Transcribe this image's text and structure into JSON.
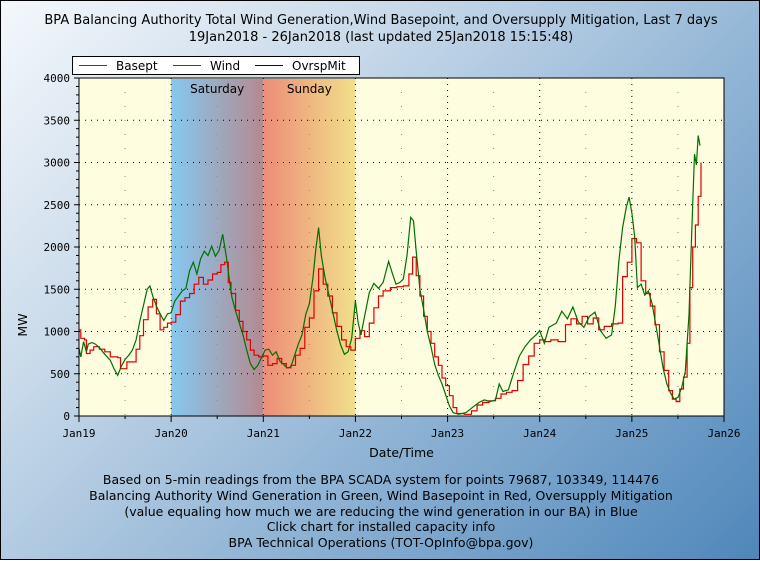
{
  "header": {
    "title_line1": "BPA Balancing Authority Total Wind Generation,Wind Basepoint, and Oversupply Mitigation, Last 7 days",
    "title_line2": "19Jan2018 - 26Jan2018 (last updated 25Jan2018 15:15:48)"
  },
  "footer": {
    "lines": [
      "Based on 5-min readings from the BPA SCADA system for points 79687, 103349, 114476",
      "Balancing Authority Wind Generation in Green, Wind Basepoint in Red, Oversupply Mitigation",
      "(value equaling how much we are reducing the wind generation in our BA) in Blue",
      "Click chart for installed capacity info",
      "BPA Technical Operations (TOT-OpInfo@bpa.gov)"
    ]
  },
  "colors": {
    "basepoint": "#e00000",
    "wind": "#007000",
    "oversupply": "#000080",
    "plot_bg": "#fffde0",
    "saturday_start": "#86c8f0",
    "saturday_end": "#b48a90",
    "sunday_start": "#ee8c78",
    "sunday_end": "#f0e08a"
  },
  "chart_data": {
    "type": "line",
    "title": "BPA Balancing Authority Total Wind Generation,Wind Basepoint, and Oversupply Mitigation, Last 7 days",
    "subtitle": "19Jan2018 - 26Jan2018 (last updated 25Jan2018 15:15:48)",
    "xlabel": "Date/Time",
    "ylabel": "MW",
    "xlim_days": [
      0,
      7
    ],
    "ylim": [
      0,
      4000
    ],
    "x_ticks": [
      "Jan19",
      "Jan20",
      "Jan21",
      "Jan22",
      "Jan23",
      "Jan24",
      "Jan25",
      "Jan26"
    ],
    "y_ticks": [
      0,
      500,
      1000,
      1500,
      2000,
      2500,
      3000,
      3500,
      4000
    ],
    "grid": true,
    "legend": {
      "placement": "top-left",
      "entries": [
        "Basept",
        "Wind",
        "OvrspMit"
      ]
    },
    "shaded_regions": [
      {
        "label": "Saturday",
        "start_day": 1,
        "end_day": 2
      },
      {
        "label": "Sunday",
        "start_day": 2,
        "end_day": 3
      }
    ],
    "x_unit": "days since Jan19 00:00",
    "series": [
      {
        "name": "Basept",
        "color": "#e00000",
        "points": [
          [
            0.0,
            1020
          ],
          [
            0.02,
            920
          ],
          [
            0.06,
            900
          ],
          [
            0.08,
            740
          ],
          [
            0.12,
            780
          ],
          [
            0.16,
            820
          ],
          [
            0.22,
            790
          ],
          [
            0.28,
            760
          ],
          [
            0.34,
            700
          ],
          [
            0.42,
            690
          ],
          [
            0.45,
            560
          ],
          [
            0.48,
            560
          ],
          [
            0.52,
            640
          ],
          [
            0.58,
            640
          ],
          [
            0.62,
            790
          ],
          [
            0.66,
            950
          ],
          [
            0.7,
            1140
          ],
          [
            0.75,
            1290
          ],
          [
            0.8,
            1380
          ],
          [
            0.84,
            1210
          ],
          [
            0.88,
            1020
          ],
          [
            0.92,
            1050
          ],
          [
            0.96,
            1100
          ],
          [
            1.0,
            1110
          ],
          [
            1.05,
            1200
          ],
          [
            1.1,
            1360
          ],
          [
            1.15,
            1400
          ],
          [
            1.2,
            1450
          ],
          [
            1.25,
            1560
          ],
          [
            1.3,
            1640
          ],
          [
            1.35,
            1560
          ],
          [
            1.4,
            1610
          ],
          [
            1.45,
            1680
          ],
          [
            1.5,
            1700
          ],
          [
            1.54,
            1790
          ],
          [
            1.58,
            1820
          ],
          [
            1.62,
            1580
          ],
          [
            1.65,
            1450
          ],
          [
            1.7,
            1250
          ],
          [
            1.74,
            1120
          ],
          [
            1.78,
            1000
          ],
          [
            1.82,
            900
          ],
          [
            1.86,
            780
          ],
          [
            1.9,
            720
          ],
          [
            1.95,
            700
          ],
          [
            2.0,
            710
          ],
          [
            2.05,
            600
          ],
          [
            2.1,
            620
          ],
          [
            2.15,
            680
          ],
          [
            2.2,
            620
          ],
          [
            2.25,
            570
          ],
          [
            2.3,
            600
          ],
          [
            2.35,
            720
          ],
          [
            2.4,
            800
          ],
          [
            2.45,
            1050
          ],
          [
            2.5,
            1160
          ],
          [
            2.55,
            1480
          ],
          [
            2.6,
            1740
          ],
          [
            2.65,
            1560
          ],
          [
            2.7,
            1420
          ],
          [
            2.75,
            1220
          ],
          [
            2.8,
            1060
          ],
          [
            2.85,
            900
          ],
          [
            2.9,
            820
          ],
          [
            2.95,
            780
          ],
          [
            3.0,
            920
          ],
          [
            3.05,
            1010
          ],
          [
            3.1,
            940
          ],
          [
            3.15,
            1100
          ],
          [
            3.2,
            1280
          ],
          [
            3.25,
            1420
          ],
          [
            3.3,
            1480
          ],
          [
            3.38,
            1520
          ],
          [
            3.45,
            1530
          ],
          [
            3.52,
            1540
          ],
          [
            3.58,
            1680
          ],
          [
            3.62,
            1880
          ],
          [
            3.66,
            1660
          ],
          [
            3.7,
            1420
          ],
          [
            3.74,
            1180
          ],
          [
            3.78,
            1000
          ],
          [
            3.82,
            860
          ],
          [
            3.86,
            700
          ],
          [
            3.9,
            600
          ],
          [
            3.94,
            450
          ],
          [
            3.98,
            360
          ],
          [
            4.02,
            240
          ],
          [
            4.06,
            100
          ],
          [
            4.1,
            30
          ],
          [
            4.18,
            20
          ],
          [
            4.26,
            60
          ],
          [
            4.32,
            130
          ],
          [
            4.38,
            160
          ],
          [
            4.45,
            180
          ],
          [
            4.52,
            210
          ],
          [
            4.58,
            260
          ],
          [
            4.64,
            280
          ],
          [
            4.7,
            300
          ],
          [
            4.76,
            420
          ],
          [
            4.82,
            610
          ],
          [
            4.88,
            710
          ],
          [
            4.94,
            860
          ],
          [
            5.0,
            900
          ],
          [
            5.05,
            880
          ],
          [
            5.12,
            900
          ],
          [
            5.2,
            880
          ],
          [
            5.28,
            1080
          ],
          [
            5.34,
            1150
          ],
          [
            5.4,
            1090
          ],
          [
            5.46,
            1180
          ],
          [
            5.52,
            1090
          ],
          [
            5.58,
            1160
          ],
          [
            5.64,
            1020
          ],
          [
            5.7,
            1060
          ],
          [
            5.78,
            1090
          ],
          [
            5.85,
            1100
          ],
          [
            5.9,
            1650
          ],
          [
            5.95,
            1820
          ],
          [
            6.0,
            2100
          ],
          [
            6.05,
            2050
          ],
          [
            6.1,
            1600
          ],
          [
            6.15,
            1450
          ],
          [
            6.2,
            1300
          ],
          [
            6.25,
            1080
          ],
          [
            6.3,
            760
          ],
          [
            6.35,
            540
          ],
          [
            6.4,
            300
          ],
          [
            6.44,
            200
          ],
          [
            6.48,
            170
          ],
          [
            6.52,
            320
          ],
          [
            6.56,
            460
          ],
          [
            6.6,
            860
          ],
          [
            6.63,
            1520
          ],
          [
            6.66,
            2000
          ],
          [
            6.69,
            2260
          ],
          [
            6.72,
            2600
          ],
          [
            6.75,
            3000
          ]
        ]
      },
      {
        "name": "Wind",
        "color": "#007000",
        "points": [
          [
            0.0,
            800
          ],
          [
            0.02,
            700
          ],
          [
            0.05,
            880
          ],
          [
            0.08,
            760
          ],
          [
            0.1,
            850
          ],
          [
            0.14,
            870
          ],
          [
            0.18,
            850
          ],
          [
            0.22,
            810
          ],
          [
            0.28,
            730
          ],
          [
            0.34,
            660
          ],
          [
            0.38,
            560
          ],
          [
            0.42,
            480
          ],
          [
            0.46,
            590
          ],
          [
            0.5,
            670
          ],
          [
            0.54,
            720
          ],
          [
            0.58,
            780
          ],
          [
            0.62,
            900
          ],
          [
            0.66,
            1120
          ],
          [
            0.7,
            1310
          ],
          [
            0.74,
            1500
          ],
          [
            0.77,
            1540
          ],
          [
            0.8,
            1420
          ],
          [
            0.84,
            1300
          ],
          [
            0.88,
            1210
          ],
          [
            0.92,
            1130
          ],
          [
            0.96,
            1210
          ],
          [
            1.0,
            1220
          ],
          [
            1.04,
            1360
          ],
          [
            1.08,
            1420
          ],
          [
            1.12,
            1480
          ],
          [
            1.16,
            1510
          ],
          [
            1.2,
            1720
          ],
          [
            1.24,
            1820
          ],
          [
            1.28,
            1680
          ],
          [
            1.32,
            1860
          ],
          [
            1.36,
            1950
          ],
          [
            1.4,
            1900
          ],
          [
            1.44,
            2010
          ],
          [
            1.48,
            1890
          ],
          [
            1.52,
            1960
          ],
          [
            1.56,
            2150
          ],
          [
            1.6,
            1880
          ],
          [
            1.63,
            1630
          ],
          [
            1.66,
            1400
          ],
          [
            1.7,
            1240
          ],
          [
            1.74,
            1100
          ],
          [
            1.78,
            960
          ],
          [
            1.82,
            780
          ],
          [
            1.86,
            620
          ],
          [
            1.9,
            550
          ],
          [
            1.94,
            600
          ],
          [
            1.98,
            690
          ],
          [
            2.02,
            780
          ],
          [
            2.06,
            790
          ],
          [
            2.1,
            720
          ],
          [
            2.14,
            760
          ],
          [
            2.18,
            650
          ],
          [
            2.22,
            610
          ],
          [
            2.26,
            570
          ],
          [
            2.3,
            580
          ],
          [
            2.34,
            720
          ],
          [
            2.38,
            850
          ],
          [
            2.42,
            960
          ],
          [
            2.46,
            1200
          ],
          [
            2.5,
            1330
          ],
          [
            2.54,
            1640
          ],
          [
            2.57,
            1970
          ],
          [
            2.6,
            2230
          ],
          [
            2.63,
            1900
          ],
          [
            2.67,
            1640
          ],
          [
            2.72,
            1400
          ],
          [
            2.76,
            1200
          ],
          [
            2.8,
            1000
          ],
          [
            2.84,
            840
          ],
          [
            2.88,
            730
          ],
          [
            2.92,
            760
          ],
          [
            2.96,
            920
          ],
          [
            3.0,
            1360
          ],
          [
            3.03,
            1100
          ],
          [
            3.06,
            960
          ],
          [
            3.1,
            1180
          ],
          [
            3.15,
            1460
          ],
          [
            3.2,
            1570
          ],
          [
            3.25,
            1510
          ],
          [
            3.3,
            1580
          ],
          [
            3.36,
            1830
          ],
          [
            3.4,
            1690
          ],
          [
            3.44,
            1560
          ],
          [
            3.48,
            1580
          ],
          [
            3.52,
            1620
          ],
          [
            3.56,
            1900
          ],
          [
            3.6,
            2350
          ],
          [
            3.63,
            2310
          ],
          [
            3.66,
            1950
          ],
          [
            3.7,
            1500
          ],
          [
            3.74,
            1260
          ],
          [
            3.78,
            1000
          ],
          [
            3.82,
            820
          ],
          [
            3.86,
            610
          ],
          [
            3.9,
            480
          ],
          [
            3.94,
            380
          ],
          [
            3.98,
            250
          ],
          [
            4.02,
            120
          ],
          [
            4.06,
            40
          ],
          [
            4.12,
            20
          ],
          [
            4.2,
            40
          ],
          [
            4.28,
            110
          ],
          [
            4.34,
            160
          ],
          [
            4.4,
            190
          ],
          [
            4.46,
            170
          ],
          [
            4.52,
            190
          ],
          [
            4.56,
            380
          ],
          [
            4.6,
            290
          ],
          [
            4.66,
            310
          ],
          [
            4.72,
            520
          ],
          [
            4.78,
            710
          ],
          [
            4.84,
            820
          ],
          [
            4.9,
            900
          ],
          [
            4.96,
            960
          ],
          [
            5.0,
            1010
          ],
          [
            5.05,
            860
          ],
          [
            5.1,
            1050
          ],
          [
            5.18,
            1100
          ],
          [
            5.24,
            1240
          ],
          [
            5.3,
            1150
          ],
          [
            5.36,
            1290
          ],
          [
            5.42,
            1110
          ],
          [
            5.48,
            1050
          ],
          [
            5.54,
            1180
          ],
          [
            5.6,
            1230
          ],
          [
            5.66,
            1010
          ],
          [
            5.72,
            920
          ],
          [
            5.78,
            960
          ],
          [
            5.82,
            1300
          ],
          [
            5.86,
            1850
          ],
          [
            5.9,
            2230
          ],
          [
            5.94,
            2470
          ],
          [
            5.97,
            2590
          ],
          [
            6.0,
            2400
          ],
          [
            6.03,
            2130
          ],
          [
            6.06,
            1520
          ],
          [
            6.1,
            1560
          ],
          [
            6.14,
            1430
          ],
          [
            6.18,
            1480
          ],
          [
            6.22,
            1330
          ],
          [
            6.26,
            1080
          ],
          [
            6.3,
            820
          ],
          [
            6.34,
            560
          ],
          [
            6.38,
            380
          ],
          [
            6.42,
            270
          ],
          [
            6.46,
            200
          ],
          [
            6.5,
            220
          ],
          [
            6.54,
            330
          ],
          [
            6.58,
            530
          ],
          [
            6.62,
            1200
          ],
          [
            6.64,
            1850
          ],
          [
            6.66,
            2500
          ],
          [
            6.68,
            3100
          ],
          [
            6.7,
            2970
          ],
          [
            6.72,
            3320
          ],
          [
            6.74,
            3200
          ]
        ]
      },
      {
        "name": "OvrspMit",
        "color": "#000080",
        "points": []
      }
    ]
  }
}
